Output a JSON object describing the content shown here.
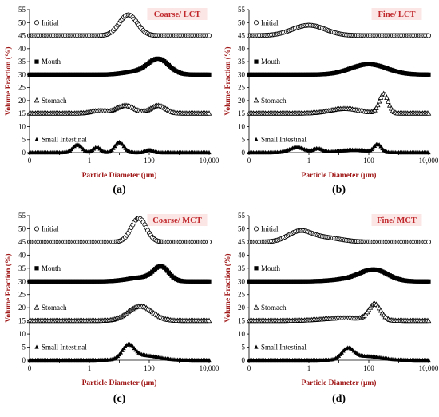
{
  "chart_data": [
    {
      "type": "line",
      "title": "Coarse/ LCT",
      "panel_label": "(a)",
      "xlabel": "Particle Diameter (μm)",
      "ylabel": "Volume Fraction (%)",
      "x_scale": "log",
      "xlim": [
        0.01,
        10000
      ],
      "ylim": [
        0,
        55
      ],
      "x_ticks": [
        "0",
        "1",
        "100",
        "10,000"
      ],
      "y_ticks": [
        "0",
        "5",
        "10",
        "15",
        "20",
        "25",
        "30",
        "35",
        "40",
        "45",
        "50",
        "55"
      ],
      "series": [
        {
          "name": "Initial",
          "marker": "open-circle",
          "baseline": 45,
          "peaks": [
            [
              1.3,
              0.3,
              8
            ]
          ]
        },
        {
          "name": "Mouth",
          "marker": "filled-square",
          "baseline": 30,
          "peaks": [
            [
              2.3,
              0.35,
              6
            ],
            [
              1.5,
              0.4,
              1
            ]
          ]
        },
        {
          "name": "Stomach",
          "marker": "open-triangle",
          "baseline": 15,
          "peaks": [
            [
              1.2,
              0.3,
              3
            ],
            [
              2.3,
              0.25,
              3
            ],
            [
              0.3,
              0.25,
              1
            ]
          ]
        },
        {
          "name": "Small Intestinal",
          "marker": "filled-triangle",
          "baseline": 0,
          "peaks": [
            [
              -0.4,
              0.15,
              3
            ],
            [
              0.25,
              0.12,
              2
            ],
            [
              1.0,
              0.15,
              4
            ],
            [
              2.0,
              0.12,
              1
            ]
          ]
        }
      ]
    },
    {
      "type": "line",
      "title": "Fine/ LCT",
      "panel_label": "(b)",
      "xlabel": "Particle Diameter (μm)",
      "ylabel": "Volume Fraction (%)",
      "x_scale": "log",
      "xlim": [
        0.01,
        10000
      ],
      "ylim": [
        0,
        55
      ],
      "x_ticks": [
        "0",
        "1",
        "100",
        "10,000"
      ],
      "y_ticks": [
        "0",
        "5",
        "10",
        "15",
        "20",
        "25",
        "30",
        "35",
        "40",
        "45",
        "50",
        "55"
      ],
      "series": [
        {
          "name": "Initial",
          "marker": "open-circle",
          "baseline": 45,
          "peaks": [
            [
              0,
              0.55,
              4
            ]
          ]
        },
        {
          "name": "Mouth",
          "marker": "filled-square",
          "baseline": 30,
          "peaks": [
            [
              2.0,
              0.6,
              4
            ]
          ]
        },
        {
          "name": "Stomach",
          "marker": "open-triangle",
          "baseline": 15,
          "peaks": [
            [
              2.5,
              0.15,
              7.5
            ],
            [
              1.2,
              0.5,
              1.8
            ]
          ]
        },
        {
          "name": "Small Intestinal",
          "marker": "filled-triangle",
          "baseline": 0,
          "peaks": [
            [
              -0.4,
              0.25,
              2
            ],
            [
              0.3,
              0.15,
              1.5
            ],
            [
              1.5,
              0.5,
              1
            ],
            [
              2.3,
              0.12,
              3
            ]
          ]
        }
      ]
    },
    {
      "type": "line",
      "title": "Coarse/ MCT",
      "panel_label": "(c)",
      "xlabel": "Particle Diameter (μm)",
      "ylabel": "Volume Fraction (%)",
      "x_scale": "log",
      "xlim": [
        0.01,
        10000
      ],
      "ylim": [
        0,
        55
      ],
      "x_ticks": [
        "0",
        "1",
        "100",
        "10,000"
      ],
      "y_ticks": [
        "0",
        "5",
        "10",
        "15",
        "20",
        "25",
        "30",
        "35",
        "40",
        "45",
        "50",
        "55"
      ],
      "series": [
        {
          "name": "Initial",
          "marker": "open-circle",
          "baseline": 45,
          "peaks": [
            [
              1.65,
              0.25,
              9
            ]
          ]
        },
        {
          "name": "Mouth",
          "marker": "filled-square",
          "baseline": 30,
          "peaks": [
            [
              2.4,
              0.25,
              5
            ],
            [
              1.8,
              0.5,
              1.5
            ]
          ]
        },
        {
          "name": "Stomach",
          "marker": "open-triangle",
          "baseline": 15,
          "peaks": [
            [
              1.7,
              0.4,
              5.5
            ]
          ]
        },
        {
          "name": "Small Intestinal",
          "marker": "filled-triangle",
          "baseline": 0,
          "peaks": [
            [
              1.3,
              0.2,
              5
            ],
            [
              1.8,
              0.5,
              1.8
            ]
          ]
        }
      ]
    },
    {
      "type": "line",
      "title": "Fine/ MCT",
      "panel_label": "(d)",
      "xlabel": "Particle Diameter (μm)",
      "ylabel": "Volume Fraction (%)",
      "x_scale": "log",
      "xlim": [
        0.01,
        10000
      ],
      "ylim": [
        0,
        55
      ],
      "x_ticks": [
        "0",
        "1",
        "100",
        "10,000"
      ],
      "y_ticks": [
        "0",
        "5",
        "10",
        "15",
        "20",
        "25",
        "30",
        "35",
        "40",
        "45",
        "50",
        "55"
      ],
      "series": [
        {
          "name": "Initial",
          "marker": "open-circle",
          "baseline": 45,
          "peaks": [
            [
              -0.3,
              0.4,
              4
            ],
            [
              0.6,
              0.5,
              1.5
            ]
          ]
        },
        {
          "name": "Mouth",
          "marker": "filled-square",
          "baseline": 30,
          "peaks": [
            [
              2.2,
              0.45,
              4
            ],
            [
              1.5,
              0.6,
              1
            ]
          ]
        },
        {
          "name": "Stomach",
          "marker": "open-triangle",
          "baseline": 15,
          "peaks": [
            [
              2.2,
              0.2,
              6
            ],
            [
              1.2,
              0.7,
              1
            ]
          ]
        },
        {
          "name": "Small Intestinal",
          "marker": "filled-triangle",
          "baseline": 0,
          "peaks": [
            [
              1.3,
              0.2,
              4
            ],
            [
              1.9,
              0.5,
              1.5
            ]
          ]
        }
      ]
    }
  ]
}
